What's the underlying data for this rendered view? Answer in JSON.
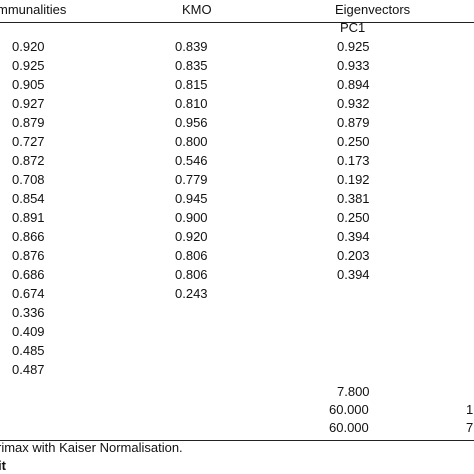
{
  "headers": [
    "mmunalities",
    "KMO",
    "Eigenvectors"
  ],
  "subheader": "PC1",
  "communalities": [
    "0.920",
    "0.925",
    "0.905",
    "0.927",
    "0.879",
    "0.727",
    "0.872",
    "0.708",
    "0.854",
    "0.891",
    "0.866",
    "0.876",
    "0.686",
    "0.674",
    "0.336",
    "0.409",
    "0.485",
    "0.487"
  ],
  "kmo": [
    "0.839",
    "0.835",
    "0.815",
    "0.810",
    "0.956",
    "0.800",
    "0.546",
    "0.779",
    "0.945",
    "0.900",
    "0.920",
    "0.806",
    "0.806",
    "0.243"
  ],
  "pc1": [
    "0.925",
    "0.933",
    "0.894",
    "0.932",
    "0.879",
    "0.250",
    "0.173",
    "0.192",
    "0.381",
    "0.250",
    "0.394",
    "0.203",
    "0.394"
  ],
  "summary": [
    {
      "pc1": "7.800"
    },
    {
      "pc1": "60.000",
      "next": "1"
    },
    {
      "pc1": "60.000",
      "next": "7"
    }
  ],
  "footnotes": [
    "rimax with Kaiser Normalisation.",
    "it"
  ]
}
